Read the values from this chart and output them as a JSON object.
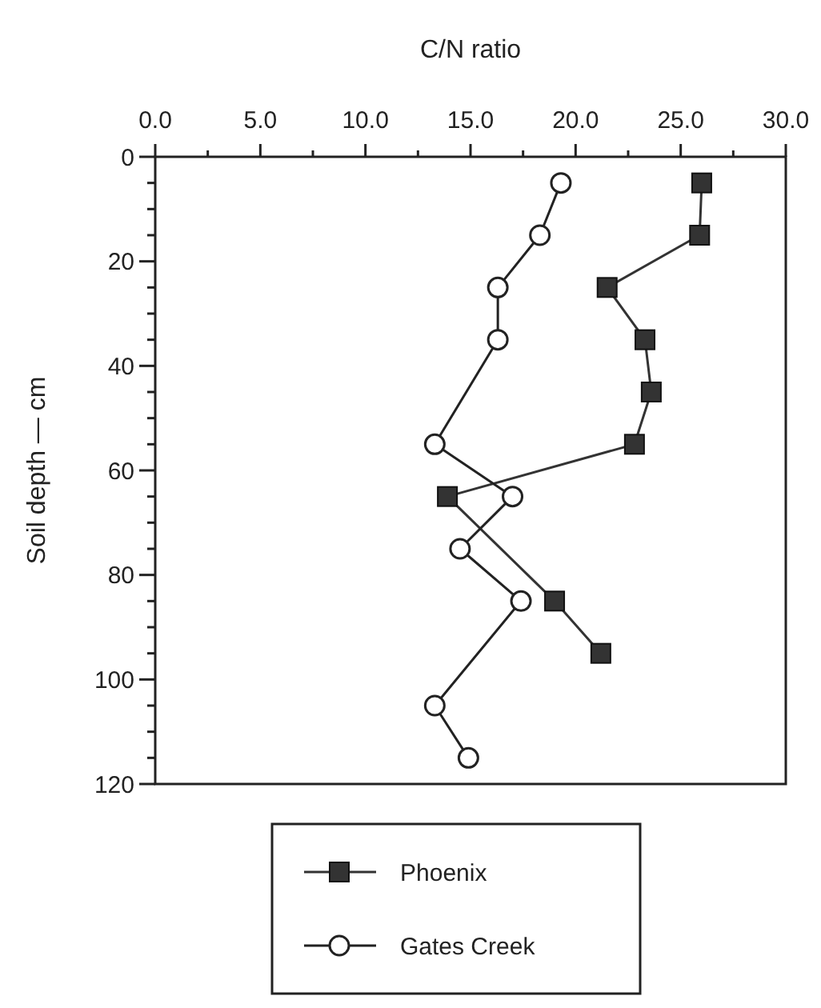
{
  "chart_data": {
    "type": "line",
    "xlabel": "C/N ratio",
    "ylabel": "Soil depth — cm",
    "xlim": [
      0,
      30
    ],
    "ylim": [
      120,
      0
    ],
    "xticks": [
      {
        "value": 0,
        "label": "0.0"
      },
      {
        "value": 2.5,
        "label": null
      },
      {
        "value": 5,
        "label": "5.0"
      },
      {
        "value": 7.5,
        "label": null
      },
      {
        "value": 10,
        "label": "10.0"
      },
      {
        "value": 12.5,
        "label": null
      },
      {
        "value": 15,
        "label": "15.0"
      },
      {
        "value": 17.5,
        "label": null
      },
      {
        "value": 20,
        "label": "20.0"
      },
      {
        "value": 22.5,
        "label": null
      },
      {
        "value": 25,
        "label": "25.0"
      },
      {
        "value": 27.5,
        "label": null
      },
      {
        "value": 30,
        "label": "30.0"
      }
    ],
    "yticks": [
      0,
      {
        "value": 5,
        "label": null
      },
      {
        "value": 10,
        "label": null
      },
      {
        "value": 15,
        "label": null
      },
      20,
      {
        "value": 25,
        "label": null
      },
      {
        "value": 30,
        "label": null
      },
      {
        "value": 35,
        "label": null
      },
      40,
      {
        "value": 45,
        "label": null
      },
      {
        "value": 50,
        "label": null
      },
      {
        "value": 55,
        "label": null
      },
      60,
      {
        "value": 65,
        "label": null
      },
      {
        "value": 70,
        "label": null
      },
      {
        "value": 75,
        "label": null
      },
      80,
      {
        "value": 85,
        "label": null
      },
      {
        "value": 90,
        "label": null
      },
      {
        "value": 95,
        "label": null
      },
      100,
      {
        "value": 105,
        "label": null
      },
      {
        "value": 110,
        "label": null
      },
      {
        "value": 115,
        "label": null
      },
      120
    ],
    "legend": "bottom",
    "grid": false,
    "series": [
      {
        "name": "Phoenix",
        "color": "#333333",
        "marker": "square",
        "x": [
          26.0,
          25.9,
          21.5,
          23.3,
          23.6,
          22.8,
          13.9,
          19.0,
          21.2
        ],
        "values": [
          5,
          15,
          25,
          35,
          45,
          55,
          65,
          85,
          95
        ]
      },
      {
        "name": "Gates Creek",
        "color": "#222222",
        "marker": "circle",
        "x": [
          19.3,
          18.3,
          16.3,
          16.3,
          13.3,
          17.0,
          14.5,
          17.4,
          13.3,
          14.9
        ],
        "values": [
          5,
          15,
          25,
          35,
          55,
          65,
          75,
          85,
          105,
          115
        ]
      }
    ]
  }
}
